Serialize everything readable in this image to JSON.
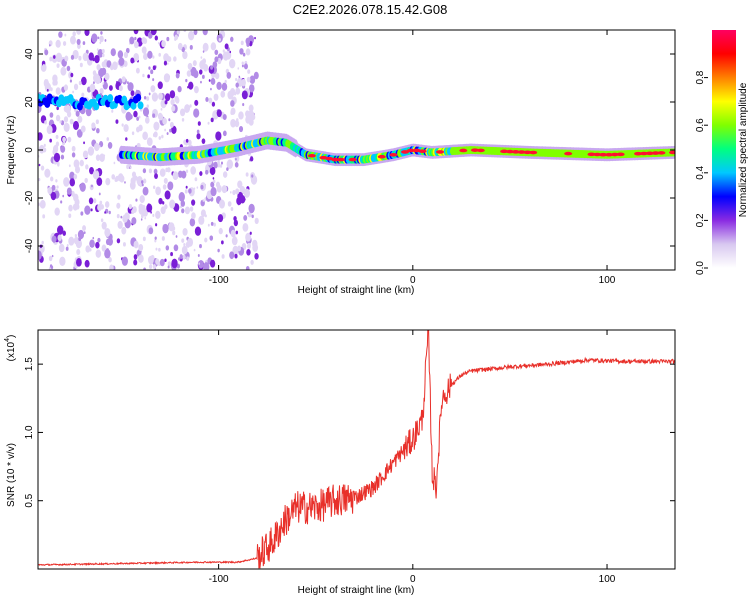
{
  "title": "C2E2.2026.078.15.42.G08",
  "chart_data": [
    {
      "type": "heatmap",
      "name": "spectrogram",
      "xlabel": "Height of straight line (km)",
      "ylabel": "Frequency (Hz)",
      "xlim": [
        -193,
        135
      ],
      "ylim": [
        -50,
        50
      ],
      "xticks": [
        -100,
        0,
        100
      ],
      "yticks": [
        -40,
        -20,
        0,
        20,
        40
      ],
      "colorbar": {
        "label": "Normalized spectral amplitude",
        "range": [
          0,
          1
        ],
        "ticks": [
          0.0,
          0.2,
          0.4,
          0.6,
          0.8
        ],
        "tick_labels": [
          "0.0",
          "0.2",
          "0.4",
          "0.6",
          "0.8"
        ],
        "colors": [
          "#ffffff",
          "#d8c8f0",
          "#8a2be2",
          "#0000ff",
          "#00c8ff",
          "#00ff80",
          "#80ff00",
          "#ffff00",
          "#ff8000",
          "#ff0000",
          "#ff0060"
        ]
      },
      "upper_band": {
        "x_range": [
          -193,
          -140
        ],
        "frequency_hz": 20
      },
      "ridge": [
        {
          "x": -150,
          "f": -2
        },
        {
          "x": -130,
          "f": -3
        },
        {
          "x": -110,
          "f": -2
        },
        {
          "x": -90,
          "f": 1
        },
        {
          "x": -75,
          "f": 4
        },
        {
          "x": -65,
          "f": 3
        },
        {
          "x": -55,
          "f": -2
        },
        {
          "x": -40,
          "f": -4
        },
        {
          "x": -25,
          "f": -4
        },
        {
          "x": -10,
          "f": -2
        },
        {
          "x": 0,
          "f": 0
        },
        {
          "x": 10,
          "f": -1
        },
        {
          "x": 30,
          "f": 0
        },
        {
          "x": 60,
          "f": -1
        },
        {
          "x": 100,
          "f": -2
        },
        {
          "x": 135,
          "f": -1
        }
      ],
      "noise_region": {
        "x_range": [
          -193,
          -80
        ]
      }
    },
    {
      "type": "line",
      "name": "snr",
      "xlabel": "Height of straight line (km)",
      "ylabel": "SNR (10 * v/v)",
      "y_multiplier": "(x10",
      "y_multiplier_exp": "4",
      "xlim": [
        -193,
        135
      ],
      "ylim": [
        0,
        1.75
      ],
      "xticks": [
        -100,
        0,
        100
      ],
      "yticks": [
        0.5,
        1.0,
        1.5
      ],
      "ytick_labels": [
        "0.5",
        "1.0",
        "1.5"
      ],
      "color": "#e8302a",
      "series": [
        {
          "x": -193,
          "y": 0.03
        },
        {
          "x": -150,
          "y": 0.04
        },
        {
          "x": -110,
          "y": 0.05
        },
        {
          "x": -90,
          "y": 0.05
        },
        {
          "x": -80,
          "y": 0.08
        },
        {
          "x": -72,
          "y": 0.2
        },
        {
          "x": -66,
          "y": 0.35
        },
        {
          "x": -60,
          "y": 0.45
        },
        {
          "x": -50,
          "y": 0.45
        },
        {
          "x": -40,
          "y": 0.5
        },
        {
          "x": -30,
          "y": 0.52
        },
        {
          "x": -20,
          "y": 0.6
        },
        {
          "x": -10,
          "y": 0.78
        },
        {
          "x": 0,
          "y": 0.95
        },
        {
          "x": 5,
          "y": 1.1
        },
        {
          "x": 8,
          "y": 1.75
        },
        {
          "x": 10,
          "y": 0.7
        },
        {
          "x": 12,
          "y": 0.6
        },
        {
          "x": 15,
          "y": 1.25
        },
        {
          "x": 20,
          "y": 1.35
        },
        {
          "x": 25,
          "y": 1.42
        },
        {
          "x": 30,
          "y": 1.45
        },
        {
          "x": 50,
          "y": 1.48
        },
        {
          "x": 70,
          "y": 1.5
        },
        {
          "x": 90,
          "y": 1.53
        },
        {
          "x": 110,
          "y": 1.52
        },
        {
          "x": 135,
          "y": 1.52
        }
      ]
    }
  ]
}
